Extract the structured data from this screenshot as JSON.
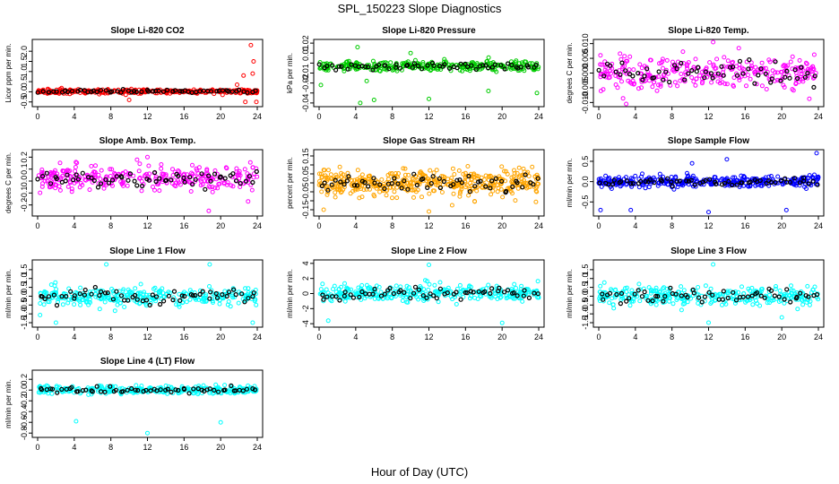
{
  "figure": {
    "title": "SPL_150223  Slope Diagnostics",
    "xlabel": "Hour of Day (UTC)"
  },
  "colors": {
    "axis": "#000000",
    "daily_points": "#000000"
  },
  "chart_data": [
    {
      "id": "co2",
      "type": "scatter",
      "title": "Slope Li-820 CO2",
      "ylabel": "Licor ppm per min.",
      "color": "#ff0000",
      "xlim": [
        0,
        24
      ],
      "ylim": [
        -0.6,
        2.45
      ],
      "yticks": [
        -0.5,
        0.0,
        0.5,
        1.0,
        1.5,
        2.0
      ],
      "ytick_labels": [
        "-0.5",
        "0.0",
        "0.5",
        "1.0",
        "1.5",
        "2.0"
      ],
      "xticks": [
        0,
        4,
        8,
        12,
        16,
        20,
        24
      ],
      "xtick_labels": [
        "0",
        "4",
        "8",
        "12",
        "16",
        "20",
        "24"
      ],
      "center": 0.02,
      "spread": 0.1,
      "n": 300,
      "outliers": [
        [
          23.3,
          2.3
        ],
        [
          23.6,
          1.5
        ],
        [
          22.5,
          0.8
        ],
        [
          23.5,
          0.9
        ],
        [
          23.9,
          -0.5
        ],
        [
          10,
          -0.4
        ],
        [
          22.7,
          -0.5
        ],
        [
          21.8,
          0.35
        ]
      ]
    },
    {
      "id": "pressure",
      "type": "scatter",
      "title": "Slope Li-820 Pressure",
      "ylabel": "kPa per min.",
      "color": "#00cc00",
      "xlim": [
        0,
        24
      ],
      "ylim": [
        -0.041,
        0.021
      ],
      "yticks": [
        -0.04,
        -0.03,
        -0.02,
        -0.01,
        0.0,
        0.01,
        0.02
      ],
      "ytick_labels": [
        "-0.04",
        "",
        "-0.02",
        "-0.01",
        "",
        "0.01",
        "0.02"
      ],
      "xticks": [
        0,
        4,
        8,
        12,
        16,
        20,
        24
      ],
      "xtick_labels": [
        "0",
        "4",
        "8",
        "12",
        "16",
        "20",
        "24"
      ],
      "center": -0.003,
      "spread": 0.005,
      "n": 300,
      "outliers": [
        [
          0.2,
          -0.022
        ],
        [
          4.5,
          -0.04
        ],
        [
          6,
          -0.037
        ],
        [
          12,
          -0.036
        ],
        [
          18.5,
          -0.028
        ],
        [
          23.8,
          -0.03
        ],
        [
          5.2,
          -0.018
        ],
        [
          4.2,
          0.016
        ],
        [
          10,
          0.01
        ]
      ]
    },
    {
      "id": "li820temp",
      "type": "scatter",
      "title": "Slope Li-820 Temp.",
      "ylabel": "degrees C per min.",
      "color": "#ff00ff",
      "xlim": [
        0,
        24
      ],
      "ylim": [
        -0.0105,
        0.0105
      ],
      "yticks": [
        -0.01,
        -0.005,
        0.0,
        0.005,
        0.01
      ],
      "ytick_labels": [
        "-0.010",
        "-0.005",
        "0.000",
        "0.005",
        "0.010"
      ],
      "xticks": [
        0,
        4,
        8,
        12,
        16,
        20,
        24
      ],
      "xtick_labels": [
        "0",
        "4",
        "8",
        "12",
        "16",
        "20",
        "24"
      ],
      "center": 0.0,
      "spread": 0.0055,
      "n": 300,
      "outliers": [
        [
          12.5,
          0.011
        ],
        [
          3,
          -0.011
        ]
      ]
    },
    {
      "id": "ambbox",
      "type": "scatter",
      "title": "Slope Amb. Box Temp.",
      "ylabel": "degrees C per min.",
      "color": "#ff00ff",
      "xlim": [
        0,
        24
      ],
      "ylim": [
        -0.27,
        0.24
      ],
      "yticks": [
        -0.2,
        -0.1,
        0.0,
        0.1,
        0.2
      ],
      "ytick_labels": [
        "-0.2",
        "-0.1",
        "0.0",
        "0.1",
        "0.2"
      ],
      "xticks": [
        0,
        4,
        8,
        12,
        16,
        20,
        24
      ],
      "xtick_labels": [
        "0",
        "4",
        "8",
        "12",
        "16",
        "20",
        "24"
      ],
      "center": 0.03,
      "spread": 0.1,
      "n": 300,
      "outliers": [
        [
          18.7,
          -0.25
        ],
        [
          23,
          -0.17
        ],
        [
          12,
          0.2
        ]
      ]
    },
    {
      "id": "rh",
      "type": "scatter",
      "title": "Slope Gas Stream RH",
      "ylabel": "percent per min.",
      "color": "#ffa500",
      "xlim": [
        0,
        24
      ],
      "ylim": [
        -0.17,
        0.17
      ],
      "yticks": [
        -0.15,
        -0.1,
        -0.05,
        0.0,
        0.05,
        0.1,
        0.15
      ],
      "ytick_labels": [
        "-0.15",
        "",
        "-0.05",
        "",
        "0.05",
        "",
        "0.15"
      ],
      "xticks": [
        0,
        4,
        8,
        12,
        16,
        20,
        24
      ],
      "xtick_labels": [
        "0",
        "4",
        "8",
        "12",
        "16",
        "20",
        "24"
      ],
      "center": 0.0,
      "spread": 0.075,
      "n": 450,
      "outliers": [
        [
          12,
          -0.16
        ],
        [
          0.5,
          -0.15
        ]
      ]
    },
    {
      "id": "sampleflow",
      "type": "scatter",
      "title": "Slope Sample Flow",
      "ylabel": "ml/min per min.",
      "color": "#0000ff",
      "xlim": [
        0,
        24
      ],
      "ylim": [
        -0.78,
        0.72
      ],
      "yticks": [
        -0.5,
        0.0,
        0.5
      ],
      "ytick_labels": [
        "-0.5",
        "0.0",
        "0.5"
      ],
      "xticks": [
        0,
        4,
        8,
        12,
        16,
        20,
        24
      ],
      "xtick_labels": [
        "0",
        "4",
        "8",
        "12",
        "16",
        "20",
        "24"
      ],
      "center": 0.0,
      "spread": 0.15,
      "n": 350,
      "outliers": [
        [
          0.2,
          -0.7
        ],
        [
          3.5,
          -0.7
        ],
        [
          12,
          -0.75
        ],
        [
          20.5,
          -0.7
        ],
        [
          23.8,
          0.7
        ],
        [
          14,
          0.55
        ],
        [
          10.2,
          0.45
        ]
      ]
    },
    {
      "id": "line1",
      "type": "scatter",
      "title": "Slope Line 1 Flow",
      "ylabel": "ml/min per min.",
      "color": "#00ffff",
      "xlim": [
        0,
        24
      ],
      "ylim": [
        -1.6,
        1.9
      ],
      "yticks": [
        -1.5,
        -1.0,
        -0.5,
        0.0,
        0.5,
        1.0,
        1.5
      ],
      "ytick_labels": [
        "-1.5",
        "-1.0",
        "-0.5",
        "0.0",
        "0.5",
        "1.0",
        "1.5"
      ],
      "xticks": [
        0,
        4,
        8,
        12,
        16,
        20,
        24
      ],
      "xtick_labels": [
        "0",
        "4",
        "8",
        "12",
        "16",
        "20",
        "24"
      ],
      "center": 0.0,
      "spread": 0.55,
      "n": 300,
      "outliers": [
        [
          7.5,
          1.8
        ],
        [
          18.8,
          1.8
        ],
        [
          2,
          -1.5
        ],
        [
          23.5,
          -1.5
        ]
      ]
    },
    {
      "id": "line2",
      "type": "scatter",
      "title": "Slope Line 2 Flow",
      "ylabel": "ml/min per min.",
      "color": "#00ffff",
      "xlim": [
        0,
        24
      ],
      "ylim": [
        -4.1,
        4.1
      ],
      "yticks": [
        -4,
        -2,
        0,
        2,
        4
      ],
      "ytick_labels": [
        "-4",
        "-2",
        "0",
        "2",
        "4"
      ],
      "xticks": [
        0,
        4,
        8,
        12,
        16,
        20,
        24
      ],
      "xtick_labels": [
        "0",
        "4",
        "8",
        "12",
        "16",
        "20",
        "24"
      ],
      "center": 0.0,
      "spread": 1.1,
      "n": 300,
      "outliers": [
        [
          20,
          -3.9
        ],
        [
          12,
          3.8
        ],
        [
          1,
          -3.6
        ]
      ]
    },
    {
      "id": "line3",
      "type": "scatter",
      "title": "Slope Line 3 Flow",
      "ylabel": "ml/min per min.",
      "color": "#00ffff",
      "xlim": [
        0,
        24
      ],
      "ylim": [
        -1.6,
        1.9
      ],
      "yticks": [
        -1.5,
        -1.0,
        -0.5,
        0.0,
        0.5,
        1.0,
        1.5
      ],
      "ytick_labels": [
        "-1.5",
        "-1.0",
        "-0.5",
        "0.0",
        "0.5",
        "1.0",
        "1.5"
      ],
      "xticks": [
        0,
        4,
        8,
        12,
        16,
        20,
        24
      ],
      "xtick_labels": [
        "0",
        "4",
        "8",
        "12",
        "16",
        "20",
        "24"
      ],
      "center": 0.0,
      "spread": 0.55,
      "n": 300,
      "outliers": [
        [
          12,
          -1.5
        ],
        [
          12.5,
          1.8
        ],
        [
          20,
          -1.2
        ]
      ]
    },
    {
      "id": "line4",
      "type": "scatter",
      "title": "Slope Line 4 (LT) Flow",
      "ylabel": "ml/min per min.",
      "color": "#00ffff",
      "xlim": [
        0,
        24
      ],
      "ylim": [
        -0.83,
        0.32
      ],
      "yticks": [
        -0.8,
        -0.6,
        -0.4,
        -0.2,
        0.0,
        0.2
      ],
      "ytick_labels": [
        "-0.8",
        "-0.6",
        "-0.4",
        "-0.2",
        "0.0",
        "0.2"
      ],
      "xticks": [
        0,
        4,
        8,
        12,
        16,
        20,
        24
      ],
      "xtick_labels": [
        "0",
        "4",
        "8",
        "12",
        "16",
        "20",
        "24"
      ],
      "center": 0.0,
      "spread": 0.07,
      "n": 300,
      "outliers": [
        [
          4.2,
          -0.58
        ],
        [
          12,
          -0.8
        ],
        [
          20,
          -0.6
        ]
      ]
    }
  ]
}
